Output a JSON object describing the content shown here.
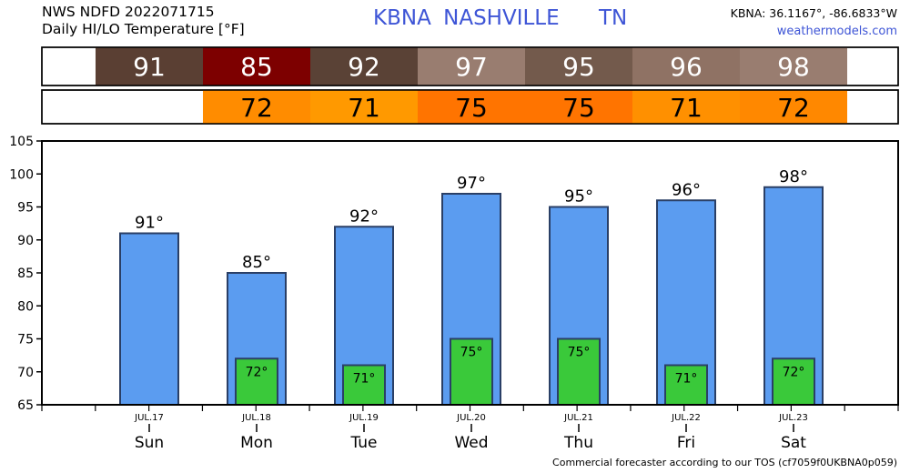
{
  "header": {
    "line1": "NWS NDFD 2022071715",
    "line2": "Daily HI/LO Temperature [°F]",
    "station": "KBNA",
    "city": "NASHVILLE",
    "state": "TN",
    "coords": "KBNA: 36.1167°, -86.6833°W",
    "site": "weathermodels.com"
  },
  "colors": {
    "bar_high": "#5b9cf0",
    "bar_low": "#3ac93a",
    "high_cells": [
      "#5a3f33",
      "#7d0000",
      "#5a4236",
      "#997d70",
      "#735a4c",
      "#8f7264",
      "#997d70"
    ],
    "low_cells": [
      null,
      "#ff8c00",
      "#ff9900",
      "#ff7400",
      "#ff7400",
      "#ff9000",
      "#ff8800"
    ]
  },
  "chart_data": {
    "type": "bar",
    "categories": [
      "Sun",
      "Mon",
      "Tue",
      "Wed",
      "Thu",
      "Fri",
      "Sat"
    ],
    "dates": [
      "JUL.17",
      "JUL.18",
      "JUL.19",
      "JUL.20",
      "JUL.21",
      "JUL.22",
      "JUL.23"
    ],
    "series": [
      {
        "values": [
          91,
          85,
          92,
          97,
          95,
          96,
          98
        ]
      },
      {
        "values": [
          null,
          72,
          71,
          75,
          75,
          71,
          72
        ]
      }
    ],
    "high_labels": [
      "91°",
      "85°",
      "92°",
      "97°",
      "95°",
      "96°",
      "98°"
    ],
    "low_labels": [
      null,
      "72°",
      "71°",
      "75°",
      "75°",
      "71°",
      "72°"
    ],
    "ylim": [
      65,
      105
    ],
    "yticks": [
      65,
      70,
      75,
      80,
      85,
      90,
      95,
      100,
      105
    ],
    "grid": false
  },
  "footer": "Commercial forecaster according to our TOS (cf7059f0UKBNA0p059)"
}
